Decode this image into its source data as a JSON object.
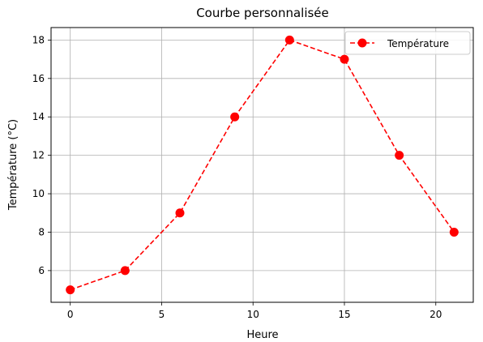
{
  "chart_data": {
    "type": "line",
    "title": "Courbe personnalisée",
    "xlabel": "Heure",
    "ylabel": "Température (°C)",
    "x": [
      0,
      3,
      6,
      9,
      12,
      15,
      18,
      21
    ],
    "series": [
      {
        "name": "Température",
        "values": [
          5,
          6,
          9,
          14,
          18,
          17,
          12,
          8
        ],
        "color": "#ff0000",
        "line_style": "dashed",
        "marker": "circle"
      }
    ],
    "xlim": [
      -1.05,
      22.05
    ],
    "ylim": [
      4.35,
      18.65
    ],
    "xticks": [
      0,
      5,
      10,
      15,
      20
    ],
    "yticks": [
      6,
      8,
      10,
      12,
      14,
      16,
      18
    ],
    "grid": true,
    "legend_position": "top-right"
  }
}
